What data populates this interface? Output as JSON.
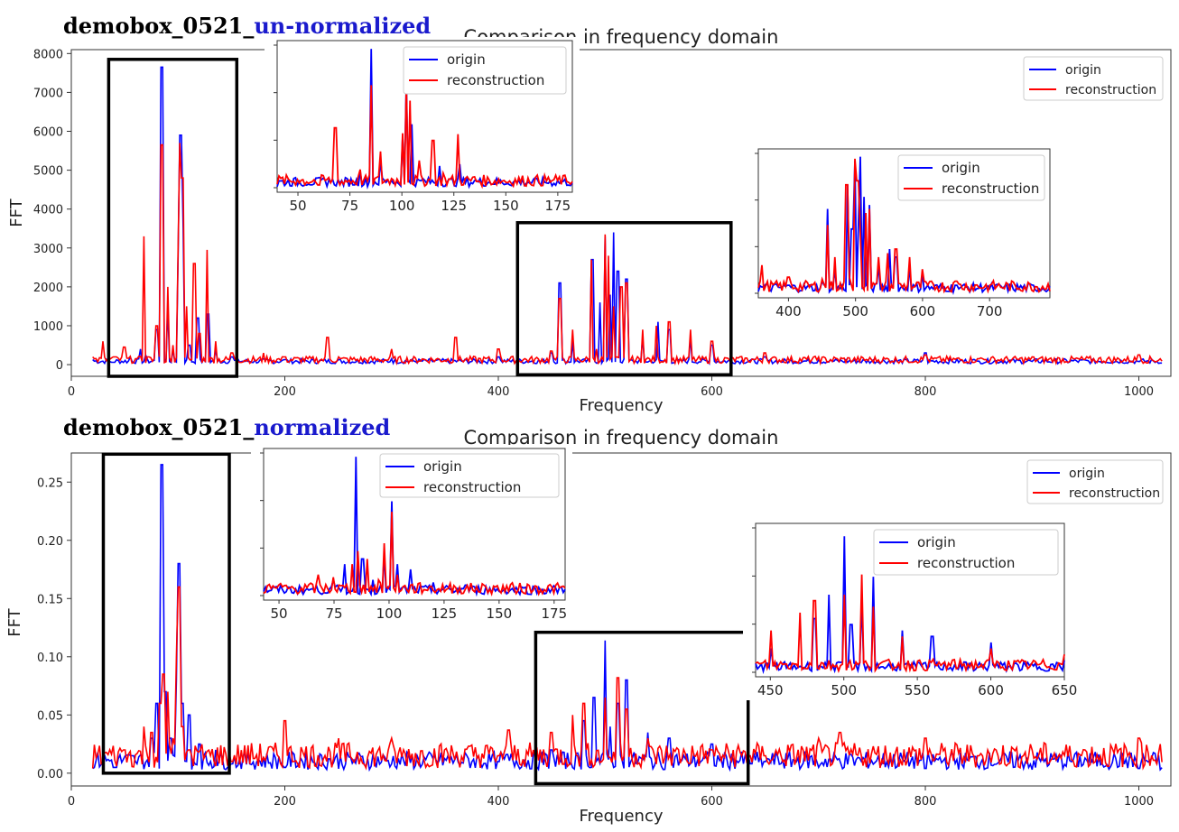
{
  "headings": [
    {
      "prefix": "demobox_0521_",
      "suffix": "un-normalized",
      "suffix_color": "#1a1acd"
    },
    {
      "prefix": "demobox_0521_",
      "suffix": "normalized",
      "suffix_color": "#1a1acd"
    }
  ],
  "colors": {
    "origin": "#0000ff",
    "reconstruction": "#ff0000",
    "highlight_box": "#000000"
  },
  "chart_data": [
    {
      "type": "line",
      "title": "Comparison in frequency domain",
      "xlabel": "Frequency",
      "ylabel": "FFT",
      "xlim": [
        0,
        1030
      ],
      "ylim": [
        -300,
        8100
      ],
      "xticks": [
        0,
        200,
        400,
        600,
        800,
        1000
      ],
      "yticks": [
        0,
        1000,
        2000,
        3000,
        4000,
        5000,
        6000,
        7000,
        8000
      ],
      "legend": [
        "origin",
        "reconstruction"
      ],
      "legend_position": "top-right",
      "highlight_regions": [
        {
          "x": [
            35,
            155
          ],
          "y": [
            -300,
            7850
          ]
        },
        {
          "x": [
            418,
            618
          ],
          "y": [
            -260,
            3650
          ]
        }
      ],
      "series": [
        {
          "name": "origin",
          "points": [
            [
              20,
              130
            ],
            [
              40,
              60
            ],
            [
              55,
              200
            ],
            [
              65,
              400
            ],
            [
              70,
              250
            ],
            [
              80,
              900
            ],
            [
              85,
              7650
            ],
            [
              90,
              1500
            ],
            [
              95,
              400
            ],
            [
              100,
              2800
            ],
            [
              102,
              5900
            ],
            [
              105,
              3500
            ],
            [
              110,
              500
            ],
            [
              118,
              1200
            ],
            [
              128,
              1300
            ],
            [
              135,
              400
            ],
            [
              150,
              200
            ],
            [
              200,
              130
            ],
            [
              300,
              150
            ],
            [
              400,
              200
            ],
            [
              450,
              300
            ],
            [
              458,
              2100
            ],
            [
              470,
              600
            ],
            [
              488,
              2700
            ],
            [
              495,
              1600
            ],
            [
              500,
              3300
            ],
            [
              505,
              1800
            ],
            [
              508,
              3400
            ],
            [
              512,
              2400
            ],
            [
              520,
              2200
            ],
            [
              535,
              700
            ],
            [
              550,
              1100
            ],
            [
              560,
              900
            ],
            [
              580,
              700
            ],
            [
              600,
              500
            ],
            [
              650,
              200
            ],
            [
              700,
              120
            ],
            [
              800,
              300
            ],
            [
              850,
              90
            ],
            [
              900,
              80
            ],
            [
              1000,
              80
            ],
            [
              1020,
              40
            ]
          ]
        },
        {
          "name": "reconstruction",
          "points": [
            [
              20,
              200
            ],
            [
              30,
              600
            ],
            [
              40,
              200
            ],
            [
              50,
              450
            ],
            [
              60,
              150
            ],
            [
              68,
              3300
            ],
            [
              72,
              200
            ],
            [
              80,
              1000
            ],
            [
              85,
              5650
            ],
            [
              90,
              2000
            ],
            [
              95,
              500
            ],
            [
              100,
              3000
            ],
            [
              102,
              5700
            ],
            [
              104,
              4800
            ],
            [
              108,
              1500
            ],
            [
              115,
              2600
            ],
            [
              120,
              800
            ],
            [
              127,
              2950
            ],
            [
              135,
              600
            ],
            [
              150,
              300
            ],
            [
              180,
              300
            ],
            [
              200,
              200
            ],
            [
              240,
              700
            ],
            [
              250,
              200
            ],
            [
              300,
              400
            ],
            [
              360,
              700
            ],
            [
              400,
              400
            ],
            [
              450,
              350
            ],
            [
              458,
              1700
            ],
            [
              470,
              900
            ],
            [
              487,
              2700
            ],
            [
              492,
              400
            ],
            [
              500,
              3350
            ],
            [
              503,
              2800
            ],
            [
              508,
              1500
            ],
            [
              515,
              2000
            ],
            [
              520,
              2100
            ],
            [
              535,
              900
            ],
            [
              548,
              1000
            ],
            [
              560,
              1100
            ],
            [
              580,
              900
            ],
            [
              600,
              600
            ],
            [
              650,
              300
            ],
            [
              700,
              200
            ],
            [
              800,
              250
            ],
            [
              850,
              150
            ],
            [
              900,
              200
            ],
            [
              1000,
              250
            ],
            [
              1020,
              150
            ]
          ]
        }
      ],
      "insets": [
        {
          "xlim": [
            40,
            182
          ],
          "xticks": [
            50,
            75,
            100,
            125,
            150,
            175
          ],
          "legend": [
            "origin",
            "reconstruction"
          ]
        },
        {
          "xlim": [
            355,
            790
          ],
          "xticks": [
            400,
            500,
            600,
            700
          ],
          "legend": [
            "origin",
            "reconstruction"
          ]
        }
      ]
    },
    {
      "type": "line",
      "title": "Comparison in frequency domain",
      "xlabel": "Frequency",
      "ylabel": "FFT",
      "xlim": [
        0,
        1030
      ],
      "ylim": [
        -0.011,
        0.275
      ],
      "xticks": [
        0,
        200,
        400,
        600,
        800,
        1000
      ],
      "yticks": [
        0.0,
        0.05,
        0.1,
        0.15,
        0.2,
        0.25
      ],
      "ytick_labels": [
        "0.00",
        "0.05",
        "0.10",
        "0.15",
        "0.20",
        "0.25"
      ],
      "legend": [
        "origin",
        "reconstruction"
      ],
      "legend_position": "top-right",
      "highlight_regions": [
        {
          "x": [
            30,
            148
          ],
          "y": [
            0.0,
            0.274
          ]
        },
        {
          "x": [
            435,
            634
          ],
          "y": [
            -0.009,
            0.121
          ]
        }
      ],
      "series": [
        {
          "name": "origin",
          "points": [
            [
              20,
              0.004
            ],
            [
              40,
              0.005
            ],
            [
              60,
              0.01
            ],
            [
              75,
              0.03
            ],
            [
              80,
              0.06
            ],
            [
              85,
              0.265
            ],
            [
              88,
              0.07
            ],
            [
              93,
              0.03
            ],
            [
              98,
              0.08
            ],
            [
              101,
              0.18
            ],
            [
              104,
              0.06
            ],
            [
              110,
              0.05
            ],
            [
              120,
              0.025
            ],
            [
              135,
              0.02
            ],
            [
              150,
              0.008
            ],
            [
              200,
              0.005
            ],
            [
              300,
              0.008
            ],
            [
              400,
              0.01
            ],
            [
              450,
              0.02
            ],
            [
              480,
              0.045
            ],
            [
              490,
              0.065
            ],
            [
              500,
              0.114
            ],
            [
              505,
              0.04
            ],
            [
              512,
              0.06
            ],
            [
              520,
              0.08
            ],
            [
              540,
              0.035
            ],
            [
              560,
              0.03
            ],
            [
              600,
              0.025
            ],
            [
              650,
              0.01
            ],
            [
              700,
              0.005
            ],
            [
              800,
              0.004
            ],
            [
              900,
              0.003
            ],
            [
              1000,
              0.004
            ],
            [
              1020,
              0.003
            ]
          ]
        },
        {
          "name": "reconstruction",
          "points": [
            [
              20,
              0.004
            ],
            [
              30,
              0.01
            ],
            [
              50,
              0.02
            ],
            [
              68,
              0.04
            ],
            [
              75,
              0.035
            ],
            [
              83,
              0.06
            ],
            [
              86,
              0.085
            ],
            [
              90,
              0.07
            ],
            [
              95,
              0.03
            ],
            [
              98,
              0.1
            ],
            [
              101,
              0.16
            ],
            [
              104,
              0.04
            ],
            [
              110,
              0.02
            ],
            [
              130,
              0.015
            ],
            [
              150,
              0.01
            ],
            [
              200,
              0.045
            ],
            [
              250,
              0.03
            ],
            [
              300,
              0.03
            ],
            [
              350,
              0.02
            ],
            [
              400,
              0.015
            ],
            [
              410,
              0.037
            ],
            [
              450,
              0.035
            ],
            [
              470,
              0.05
            ],
            [
              480,
              0.06
            ],
            [
              500,
              0.065
            ],
            [
              512,
              0.082
            ],
            [
              520,
              0.055
            ],
            [
              540,
              0.03
            ],
            [
              600,
              0.02
            ],
            [
              650,
              0.015
            ],
            [
              700,
              0.03
            ],
            [
              720,
              0.035
            ],
            [
              800,
              0.03
            ],
            [
              850,
              0.015
            ],
            [
              900,
              0.02
            ],
            [
              950,
              0.02
            ],
            [
              1000,
              0.03
            ],
            [
              1020,
              0.025
            ]
          ]
        }
      ],
      "insets": [
        {
          "xlim": [
            43,
            180
          ],
          "xticks": [
            50,
            75,
            100,
            125,
            150,
            175
          ],
          "legend": [
            "origin",
            "reconstruction"
          ]
        },
        {
          "xlim": [
            440,
            650
          ],
          "xticks": [
            450,
            500,
            550,
            600,
            650
          ],
          "legend": [
            "origin",
            "reconstruction"
          ]
        }
      ]
    }
  ]
}
